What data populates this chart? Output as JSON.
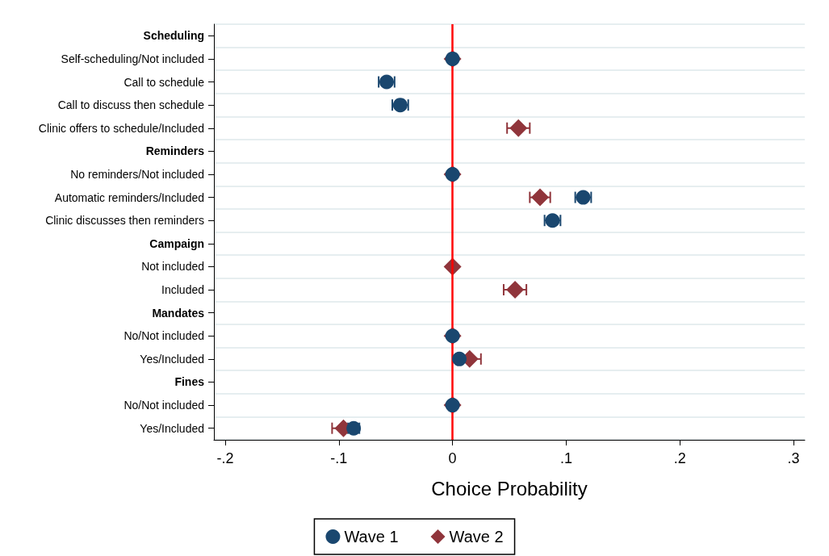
{
  "chart_data": {
    "type": "scatter",
    "orientation": "horizontal",
    "xlabel": "Choice Probability",
    "categories": [
      "Scheduling",
      "Self-scheduling/Not included",
      "Call to schedule",
      "Call to discuss then schedule",
      "Clinic offers to schedule/Included",
      "Reminders",
      "No reminders/Not included",
      "Automatic reminders/Included",
      "Clinic discusses then reminders",
      "Campaign",
      "Not included",
      "Included",
      "Mandates",
      "No/Not included",
      "Yes/Included",
      "Fines",
      "No/Not included",
      "Yes/Included"
    ],
    "series": [
      {
        "name": "Wave 2",
        "color": "#90353b",
        "marker": "diamond",
        "values": [
          null,
          0,
          null,
          null,
          0.058,
          null,
          0,
          0.077,
          null,
          null,
          0,
          0.055,
          null,
          0,
          0.015,
          null,
          0,
          -0.096
        ],
        "errors": [
          null,
          null,
          null,
          null,
          0.01,
          null,
          null,
          0.009,
          null,
          null,
          null,
          0.01,
          null,
          null,
          0.01,
          null,
          null,
          0.01
        ]
      },
      {
        "name": "Wave 1",
        "color": "#1a476f",
        "marker": "circle",
        "values": [
          null,
          0,
          -0.058,
          -0.046,
          null,
          null,
          0,
          0.115,
          0.088,
          null,
          null,
          null,
          null,
          0,
          0.006,
          null,
          0,
          -0.087
        ],
        "errors": [
          null,
          null,
          0.007,
          0.007,
          null,
          null,
          null,
          0.007,
          0.007,
          null,
          null,
          null,
          null,
          null,
          0.003,
          null,
          null,
          0.005
        ]
      }
    ],
    "xlim": [
      -0.21,
      0.31
    ],
    "xticks": [
      {
        "value": -0.2,
        "label": "-.2"
      },
      {
        "value": -0.1,
        "label": "-.1"
      },
      0,
      {
        "value": 0.1,
        "label": ".1"
      },
      {
        "value": 0.2,
        "label": ".2"
      },
      {
        "value": 0.3,
        "label": ".3"
      }
    ],
    "ref_lines": [
      {
        "axis": "x",
        "value": 0,
        "color": "#ff0000"
      }
    ],
    "grid": "y",
    "legend": "bottom"
  }
}
